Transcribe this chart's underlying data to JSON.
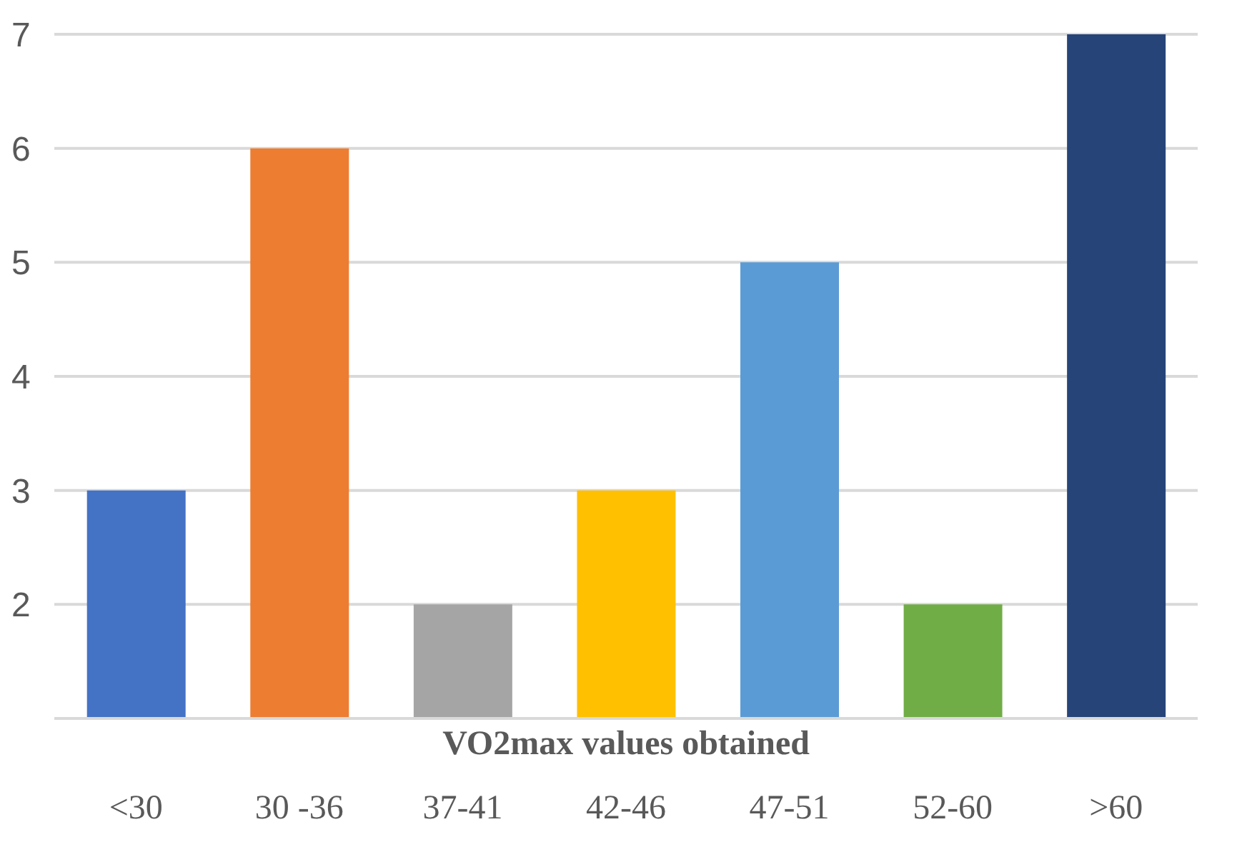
{
  "chart_data": {
    "type": "bar",
    "xlabel": "VO2max values obtained",
    "categories": [
      "<30",
      "30 -36",
      "37-41",
      "42-46",
      "47-51",
      "52-60",
      ">60"
    ],
    "values": [
      3,
      6,
      2,
      3,
      5,
      2,
      7
    ],
    "colors": [
      "#4472c4",
      "#ed7d31",
      "#a5a5a5",
      "#ffc000",
      "#5b9bd5",
      "#70ad47",
      "#264478"
    ],
    "ylim": [
      1,
      7
    ],
    "yticks": [
      2,
      3,
      4,
      5,
      6,
      7
    ],
    "grid": "y"
  }
}
